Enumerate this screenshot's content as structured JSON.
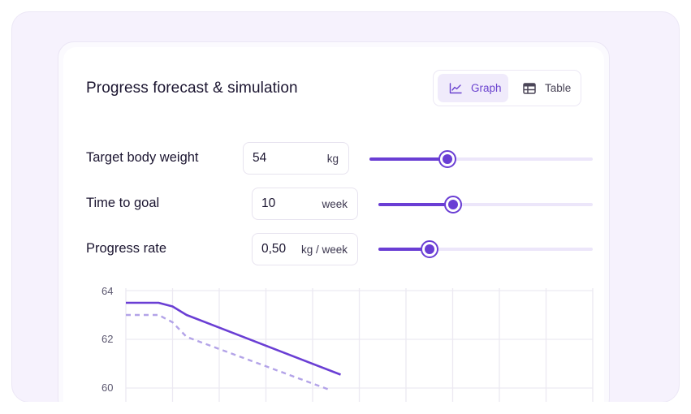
{
  "title": "Progress forecast & simulation",
  "view_toggle": {
    "graph_label": "Graph",
    "table_label": "Table",
    "selected": "Graph",
    "graph_icon": "line-chart-icon",
    "table_icon": "table-icon"
  },
  "inputs": [
    {
      "label": "Target body weight",
      "value": "54",
      "unit": "kg",
      "slider_fraction": 0.35
    },
    {
      "label": "Time to goal",
      "value": "10",
      "unit": "week",
      "slider_fraction": 0.35
    },
    {
      "label": "Progress rate",
      "value": "0,50",
      "unit": "kg / week",
      "slider_fraction": 0.24
    }
  ],
  "colors": {
    "accent": "#6a3ed4",
    "accent_light": "#ece6fa",
    "forecast_line": "#6a3ed4",
    "simulation_line": "#b3a3e8",
    "background": "#f6f2fd"
  },
  "chart_data": {
    "type": "line",
    "ylim": [
      59.7,
      64.2
    ],
    "xlim": [
      0,
      10
    ],
    "y_ticks": [
      "64",
      "62",
      "60"
    ],
    "grid": true,
    "series": [
      {
        "style": "solid",
        "x": [
          0,
          0.7,
          1.0,
          1.3,
          4.6
        ],
        "y": [
          63.5,
          63.5,
          63.35,
          63.0,
          60.55
        ]
      },
      {
        "style": "dashed",
        "x": [
          0,
          0.7,
          1.0,
          1.3,
          4.4
        ],
        "y": [
          63.0,
          63.0,
          62.7,
          62.1,
          59.9
        ]
      }
    ]
  }
}
